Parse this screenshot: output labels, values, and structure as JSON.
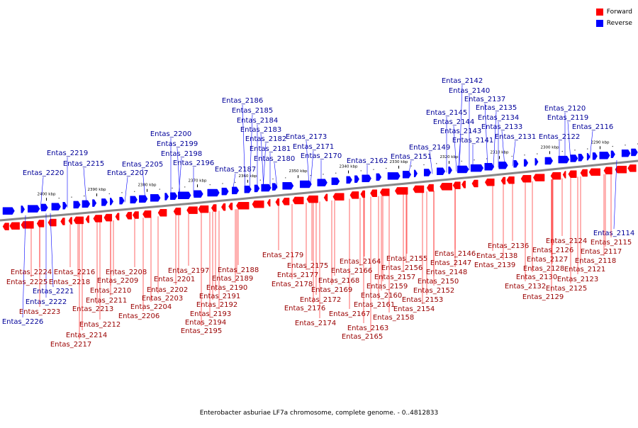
{
  "legend": {
    "forward_label": "Forward",
    "reverse_label": "Reverse",
    "forward_color": "#ff0000",
    "reverse_color": "#0000ff"
  },
  "caption": "Enterobacter asburiae LF7a chromosome, complete genome. - 0..4812833",
  "ticks": [
    {
      "kbp": 2400,
      "label": "2400 kbp"
    },
    {
      "kbp": 2390,
      "label": "2390 kbp"
    },
    {
      "kbp": 2380,
      "label": "2380 kbp"
    },
    {
      "kbp": 2370,
      "label": "2370 kbp"
    },
    {
      "kbp": 2360,
      "label": "2360 kbp"
    },
    {
      "kbp": 2350,
      "label": "2350 kbp"
    },
    {
      "kbp": 2340,
      "label": "2340 kbp"
    },
    {
      "kbp": 2330,
      "label": "2330 kbp"
    },
    {
      "kbp": 2320,
      "label": "2320 kbp"
    },
    {
      "kbp": 2310,
      "label": "2310 kbp"
    },
    {
      "kbp": 2300,
      "label": "2300 kbp"
    },
    {
      "kbp": 2290,
      "label": "2290 kbp"
    }
  ],
  "reverse_genes": [
    "Entas_2142",
    "Entas_2140",
    "Entas_2137",
    "Entas_2135",
    "Entas_2134",
    "Entas_2133",
    "Entas_2131",
    "Entas_2145",
    "Entas_2144",
    "Entas_2143",
    "Entas_2141",
    "Entas_2149",
    "Entas_2151",
    "Entas_2162",
    "Entas_2173",
    "Entas_2171",
    "Entas_2170",
    "Entas_2186",
    "Entas_2185",
    "Entas_2184",
    "Entas_2183",
    "Entas_2182",
    "Entas_2181",
    "Entas_2180",
    "Entas_2187",
    "Entas_2200",
    "Entas_2199",
    "Entas_2198",
    "Entas_2196",
    "Entas_2205",
    "Entas_2207",
    "Entas_2219",
    "Entas_2215",
    "Entas_2220",
    "Entas_2120",
    "Entas_2119",
    "Entas_2116",
    "Entas_2122",
    "Entas_2114",
    "Entas_2221",
    "Entas_2222",
    "Entas_2226"
  ],
  "forward_genes": [
    "Entas_2224",
    "Entas_2225",
    "Entas_2223",
    "Entas_2216",
    "Entas_2218",
    "Entas_2213",
    "Entas_2212",
    "Entas_2214",
    "Entas_2217",
    "Entas_2211",
    "Entas_2210",
    "Entas_2209",
    "Entas_2208",
    "Entas_2206",
    "Entas_2204",
    "Entas_2203",
    "Entas_2202",
    "Entas_2201",
    "Entas_2197",
    "Entas_2192",
    "Entas_2193",
    "Entas_2194",
    "Entas_2195",
    "Entas_2191",
    "Entas_2190",
    "Entas_2189",
    "Entas_2188",
    "Entas_2179",
    "Entas_2177",
    "Entas_2175",
    "Entas_2178",
    "Entas_2172",
    "Entas_2176",
    "Entas_2174",
    "Entas_2169",
    "Entas_2168",
    "Entas_2166",
    "Entas_2164",
    "Entas_2167",
    "Entas_2163",
    "Entas_2165",
    "Entas_2161",
    "Entas_2160",
    "Entas_2159",
    "Entas_2157",
    "Entas_2156",
    "Entas_2155",
    "Entas_2158",
    "Entas_2154",
    "Entas_2153",
    "Entas_2152",
    "Entas_2150",
    "Entas_2148",
    "Entas_2147",
    "Entas_2146",
    "Entas_2138",
    "Entas_2139",
    "Entas_2136",
    "Entas_2132",
    "Entas_2130",
    "Entas_2128",
    "Entas_2127",
    "Entas_2126",
    "Entas_2124",
    "Entas_2129",
    "Entas_2125",
    "Entas_2123",
    "Entas_2121",
    "Entas_2118",
    "Entas_2117",
    "Entas_2115"
  ]
}
